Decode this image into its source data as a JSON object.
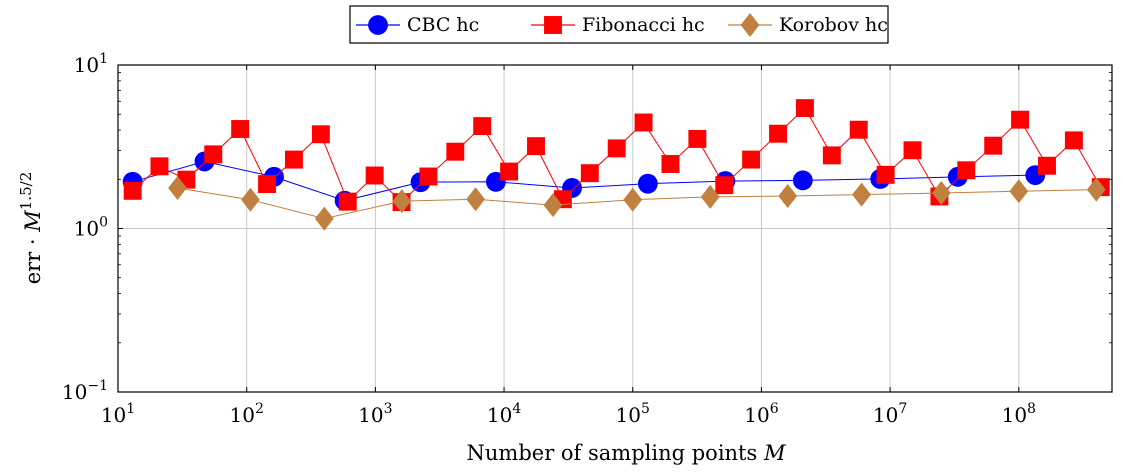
{
  "chart_data": {
    "type": "line",
    "xscale": "log",
    "yscale": "log",
    "xlim": [
      10,
      530000000
    ],
    "ylim": [
      0.1,
      10
    ],
    "xlabel": "Number of sampling points M",
    "ylabel": "err · M^{1.5/2}",
    "grid": true,
    "legend": "top-center",
    "xticks": [
      {
        "value": 10,
        "base": "10",
        "exp": "1"
      },
      {
        "value": 100,
        "base": "10",
        "exp": "2"
      },
      {
        "value": 1000,
        "base": "10",
        "exp": "3"
      },
      {
        "value": 10000,
        "base": "10",
        "exp": "4"
      },
      {
        "value": 100000,
        "base": "10",
        "exp": "5"
      },
      {
        "value": 1000000,
        "base": "10",
        "exp": "6"
      },
      {
        "value": 10000000,
        "base": "10",
        "exp": "7"
      },
      {
        "value": 100000000,
        "base": "10",
        "exp": "8"
      }
    ],
    "yticks": [
      {
        "value": 0.1,
        "base": "10",
        "exp": "−1"
      },
      {
        "value": 1,
        "base": "10",
        "exp": "0"
      },
      {
        "value": 10,
        "base": "10",
        "exp": "1"
      }
    ],
    "series": [
      {
        "name": "CBC hc",
        "color": "#0000ff",
        "marker": "circle",
        "x": [
          13,
          47,
          163,
          577,
          2243,
          8641,
          33767,
          131009,
          524287,
          2097143,
          8388593,
          33554393,
          134217689
        ],
        "y": [
          1.93,
          2.57,
          2.07,
          1.48,
          1.92,
          1.93,
          1.77,
          1.88,
          1.95,
          1.97,
          2.01,
          2.07,
          2.12
        ]
      },
      {
        "name": "Fibonacci hc",
        "color": "#ff0000",
        "marker": "square",
        "x": [
          13,
          21,
          34,
          55,
          89,
          144,
          233,
          377,
          610,
          987,
          1597,
          2584,
          4181,
          6765,
          10946,
          17711,
          28657,
          46368,
          75025,
          121393,
          196418,
          317811,
          514229,
          832040,
          1346269,
          2178309,
          3524578,
          5702887,
          9227465,
          14930352,
          24157817,
          39088169,
          63245986,
          102334155,
          165580141,
          267914296,
          433494437
        ],
        "y": [
          1.7,
          2.4,
          1.99,
          2.84,
          4.06,
          1.87,
          2.64,
          3.77,
          1.46,
          2.11,
          1.45,
          2.08,
          2.95,
          4.23,
          2.23,
          3.19,
          1.51,
          2.18,
          3.09,
          4.45,
          2.48,
          3.53,
          1.84,
          2.64,
          3.8,
          5.45,
          2.8,
          4.02,
          2.13,
          3.01,
          1.57,
          2.27,
          3.21,
          4.63,
          2.42,
          3.46,
          1.79
        ]
      },
      {
        "name": "Korobov hc",
        "color": "#bf8040",
        "marker": "diamond",
        "x": [
          29,
          107,
          401,
          1607,
          6007,
          24007,
          100003,
          400009,
          1600033,
          6000011,
          25000009,
          100000007,
          400000009
        ],
        "y": [
          1.77,
          1.5,
          1.15,
          1.47,
          1.51,
          1.39,
          1.5,
          1.56,
          1.58,
          1.61,
          1.65,
          1.69,
          1.73
        ]
      }
    ]
  }
}
